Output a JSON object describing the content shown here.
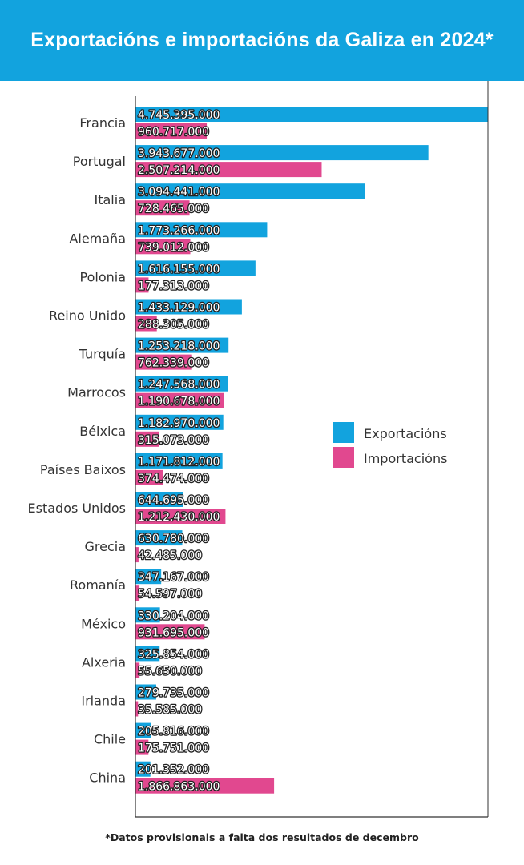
{
  "header": {
    "title": "Exportacións e importacións da Galiza en 2024*"
  },
  "footnote": "*Datos provisionais a falta dos resultados de decembro",
  "colors": {
    "header_bg": "#12a3de",
    "exports": "#12a3de",
    "imports": "#e1488f"
  },
  "chart_data": {
    "type": "bar",
    "orientation": "horizontal",
    "title": "Exportacións e importacións da Galiza en 2024*",
    "categories": [
      "Francia",
      "Portugal",
      "Italia",
      "Alemaña",
      "Polonia",
      "Reino Unido",
      "Turquía",
      "Marrocos",
      "Bélxica",
      "Países Baixos",
      "Estados Unidos",
      "Grecia",
      "Romanía",
      "México",
      "Alxeria",
      "Irlanda",
      "Chile",
      "China"
    ],
    "series": [
      {
        "name": "Exportacións",
        "color": "#12a3de",
        "values": [
          4745395000,
          3943677000,
          3094441000,
          1773266000,
          1616155000,
          1433129000,
          1253218000,
          1247568000,
          1182970000,
          1171812000,
          644695000,
          630780000,
          347167000,
          330204000,
          325854000,
          279735000,
          205816000,
          201352000
        ],
        "labels": [
          "4.745.395.000",
          "3.943.677.000",
          "3.094.441.000",
          "1.773.266.000",
          "1.616.155.000",
          "1.433.129.000",
          "1.253.218.000",
          "1.247.568.000",
          "1.182.970.000",
          "1.171.812.000",
          "644.695.000",
          "630.780.000",
          "347.167.000",
          "330.204.000",
          "325.854.000",
          "279.735.000",
          "205.816.000",
          "201.352.000"
        ]
      },
      {
        "name": "Importacións",
        "color": "#e1488f",
        "values": [
          960717000,
          2507214000,
          728465000,
          739012000,
          177313000,
          288305000,
          762339000,
          1190678000,
          315073000,
          374474000,
          1212430000,
          42485000,
          54597000,
          931695000,
          55650000,
          35585000,
          175751000,
          1866863000
        ],
        "labels": [
          "960.717.000",
          "2.507.214.000",
          "728.465.000",
          "739.012.000",
          "177.313.000",
          "288.305.000",
          "762.339.000",
          "1.190.678.000",
          "315.073.000",
          "374.474.000",
          "1.212.430.000",
          "42.485.000",
          "54.597.000",
          "931.695.000",
          "55.650.000",
          "35.585.000",
          "175.751.000",
          "1.866.863.000"
        ]
      }
    ],
    "xlim": [
      0,
      4745395000
    ],
    "grid": false,
    "legend": "right"
  }
}
